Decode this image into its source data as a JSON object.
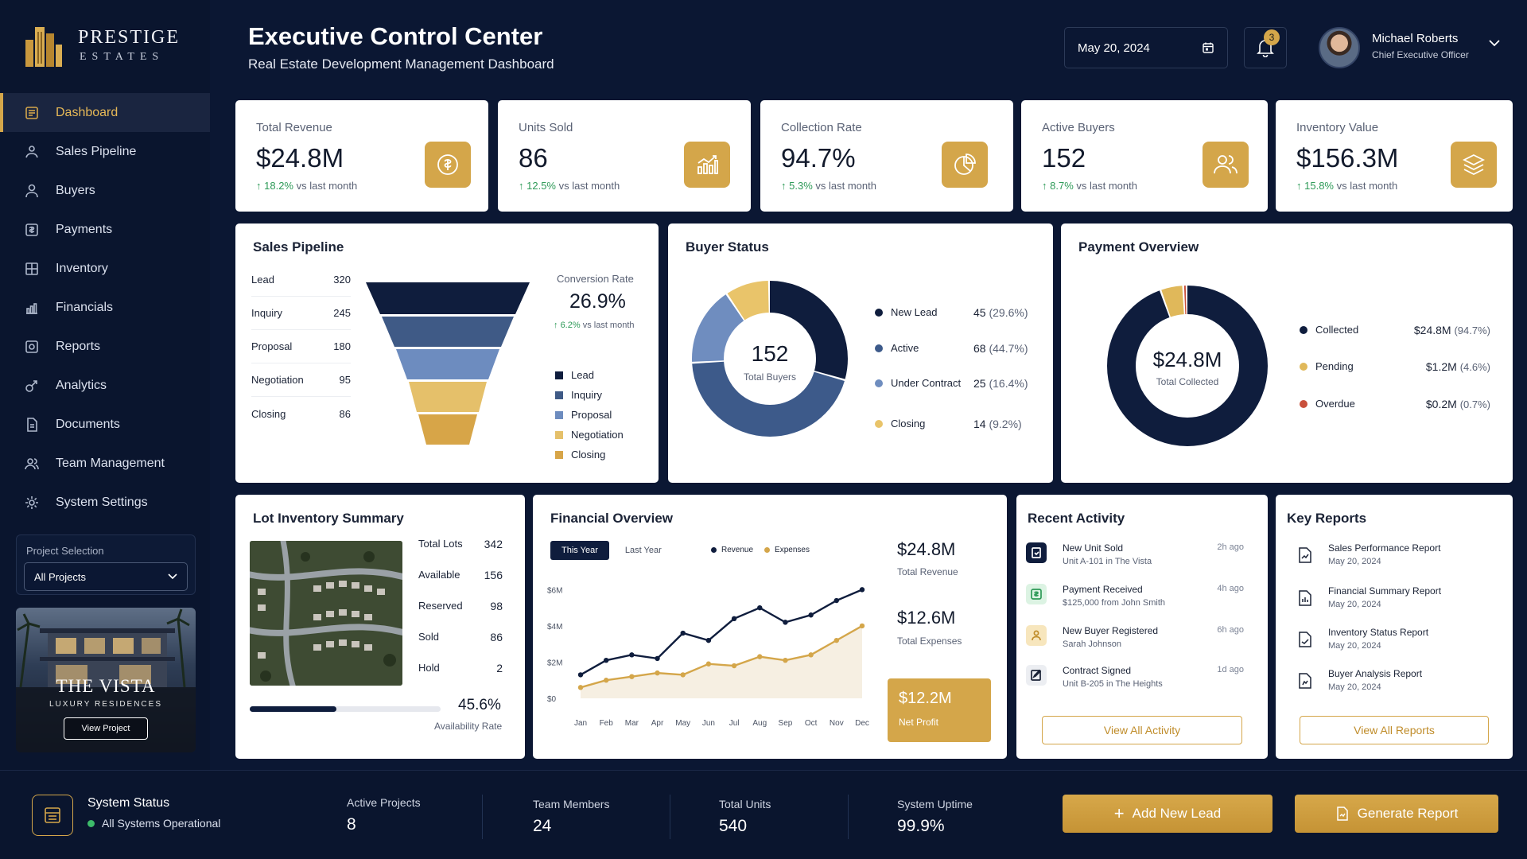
{
  "brand": {
    "name": "PRESTIGE",
    "sub": "ESTATES"
  },
  "nav": [
    {
      "label": "Dashboard",
      "icon": "dashboard-icon"
    },
    {
      "label": "Sales Pipeline",
      "icon": "pipeline-icon"
    },
    {
      "label": "Buyers",
      "icon": "user-icon"
    },
    {
      "label": "Payments",
      "icon": "payment-icon"
    },
    {
      "label": "Inventory",
      "icon": "inventory-icon"
    },
    {
      "label": "Financials",
      "icon": "bar-chart-icon"
    },
    {
      "label": "Reports",
      "icon": "report-icon"
    },
    {
      "label": "Analytics",
      "icon": "analytics-icon"
    },
    {
      "label": "Documents",
      "icon": "document-icon"
    },
    {
      "label": "Team Management",
      "icon": "team-icon"
    },
    {
      "label": "System Settings",
      "icon": "gear-icon"
    }
  ],
  "project": {
    "label": "Project Selection",
    "selected": "All Projects",
    "promo_title": "THE VISTA",
    "promo_sub": "LUXURY RESIDENCES",
    "promo_button": "View Project"
  },
  "header": {
    "title": "Executive Control Center",
    "subtitle": "Real Estate Development Management Dashboard",
    "date": "May 20, 2024",
    "notifications": "3",
    "user_name": "Michael Roberts",
    "user_role": "Chief Executive Officer"
  },
  "kpis": [
    {
      "label": "Total Revenue",
      "value": "$24.8M",
      "delta": "18.2%",
      "delta_text": "vs last month",
      "icon": "dollar-icon"
    },
    {
      "label": "Units Sold",
      "value": "86",
      "delta": "12.5%",
      "delta_text": "vs last month",
      "icon": "chart-up-icon"
    },
    {
      "label": "Collection Rate",
      "value": "94.7%",
      "delta": "5.3%",
      "delta_text": "vs last month",
      "icon": "pie-icon"
    },
    {
      "label": "Active Buyers",
      "value": "152",
      "delta": "8.7%",
      "delta_text": "vs last month",
      "icon": "users-icon"
    },
    {
      "label": "Inventory Value",
      "value": "$156.3M",
      "delta": "15.8%",
      "delta_text": "vs last month",
      "icon": "layers-icon"
    }
  ],
  "pipeline": {
    "title": "Sales Pipeline",
    "stages": [
      {
        "label": "Lead",
        "value": "320"
      },
      {
        "label": "Inquiry",
        "value": "245"
      },
      {
        "label": "Proposal",
        "value": "180"
      },
      {
        "label": "Negotiation",
        "value": "95"
      },
      {
        "label": "Closing",
        "value": "86"
      }
    ],
    "conversion_label": "Conversion Rate",
    "conversion_value": "26.9%",
    "conversion_delta": "6.2%",
    "conversion_delta_text": "vs last month",
    "colors": [
      "#0f1d3d",
      "#3f5a86",
      "#6d8cbf",
      "#d4a64a",
      "#d7a548"
    ]
  },
  "buyer_status": {
    "title": "Buyer Status",
    "total": "152",
    "total_label": "Total Buyers",
    "items": [
      {
        "label": "New Lead",
        "count": "45",
        "pct": "(29.6%)",
        "value": 45,
        "color": "#0f1d3d"
      },
      {
        "label": "Active",
        "count": "68",
        "pct": "(44.7%)",
        "value": 68,
        "color": "#3d5a8a"
      },
      {
        "label": "Under Contract",
        "count": "25",
        "pct": "(16.4%)",
        "value": 25,
        "color": "#6f8dbf"
      },
      {
        "label": "Closing",
        "count": "14",
        "pct": "(9.2%)",
        "value": 14,
        "color": "#e9c46a"
      }
    ]
  },
  "payment_overview": {
    "title": "Payment Overview",
    "total": "$24.8M",
    "total_label": "Total Collected",
    "items": [
      {
        "label": "Collected",
        "amount": "$24.8M",
        "pct": "(94.7%)",
        "value": 94.7,
        "color": "#0f1d3d"
      },
      {
        "label": "Pending",
        "amount": "$1.2M",
        "pct": "(4.6%)",
        "value": 4.6,
        "color": "#e0b85a"
      },
      {
        "label": "Overdue",
        "amount": "$0.2M",
        "pct": "(0.7%)",
        "value": 0.7,
        "color": "#c9503c"
      }
    ]
  },
  "lot_inventory": {
    "title": "Lot Inventory Summary",
    "rows": [
      {
        "label": "Total Lots",
        "value": "342"
      },
      {
        "label": "Available",
        "value": "156"
      },
      {
        "label": "Reserved",
        "value": "98"
      },
      {
        "label": "Sold",
        "value": "86"
      },
      {
        "label": "Hold",
        "value": "2"
      }
    ],
    "availability": "45.6%",
    "availability_fraction": 0.456,
    "availability_label": "Availability Rate"
  },
  "financial": {
    "title": "Financial Overview",
    "tabs": [
      "This Year",
      "Last Year"
    ],
    "total_revenue": "$24.8M",
    "total_revenue_label": "Total Revenue",
    "total_expenses": "$12.6M",
    "total_expenses_label": "Total Expenses",
    "net_profit": "$12.2M",
    "net_profit_label": "Net Profit"
  },
  "chart_data": {
    "type": "line",
    "categories": [
      "Jan",
      "Feb",
      "Mar",
      "Apr",
      "May",
      "Jun",
      "Jul",
      "Aug",
      "Sep",
      "Oct",
      "Nov",
      "Dec"
    ],
    "series": [
      {
        "name": "Revenue",
        "color": "#0f1d3d",
        "values": [
          1.3,
          2.1,
          2.4,
          2.2,
          3.6,
          3.2,
          4.4,
          5.0,
          4.2,
          4.6,
          5.4,
          6.0
        ]
      },
      {
        "name": "Expenses",
        "color": "#d4a64a",
        "values": [
          0.6,
          1.0,
          1.2,
          1.4,
          1.3,
          1.9,
          1.8,
          2.3,
          2.1,
          2.4,
          3.2,
          4.0
        ]
      }
    ],
    "yticks": [
      "$0",
      "$2M",
      "$4M",
      "$6M"
    ],
    "ylim": [
      0,
      6.5
    ]
  },
  "recent_activity": {
    "title": "Recent Activity",
    "items": [
      {
        "title": "New Unit Sold",
        "sub": "Unit A-101 in The Vista",
        "time": "2h ago",
        "icon": "unit-icon"
      },
      {
        "title": "Payment Received",
        "sub": "$125,000 from John Smith",
        "time": "4h ago",
        "icon": "payment-icon"
      },
      {
        "title": "New Buyer Registered",
        "sub": "Sarah Johnson",
        "time": "6h ago",
        "icon": "user-icon"
      },
      {
        "title": "Contract Signed",
        "sub": "Unit B-205 in The Heights",
        "time": "1d ago",
        "icon": "contract-icon"
      }
    ],
    "button": "View All Activity"
  },
  "key_reports": {
    "title": "Key Reports",
    "items": [
      {
        "title": "Sales Performance Report",
        "date": "May 20, 2024"
      },
      {
        "title": "Financial Summary Report",
        "date": "May 20, 2024"
      },
      {
        "title": "Inventory Status Report",
        "date": "May 20, 2024"
      },
      {
        "title": "Buyer Analysis Report",
        "date": "May 20, 2024"
      }
    ],
    "button": "View All Reports"
  },
  "footer": {
    "status_title": "System Status",
    "status_text": "All Systems Operational",
    "stats": [
      {
        "label": "Active Projects",
        "value": "8"
      },
      {
        "label": "Team Members",
        "value": "24"
      },
      {
        "label": "Total Units",
        "value": "540"
      },
      {
        "label": "System Uptime",
        "value": "99.9%"
      }
    ],
    "add_lead": "Add New Lead",
    "generate_report": "Generate Report"
  }
}
